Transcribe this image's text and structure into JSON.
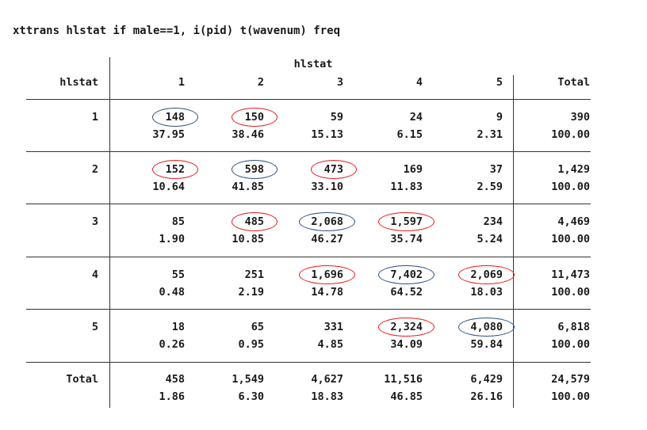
{
  "command": "xttrans hlstat if male==1, i(pid) t(wavenum) freq",
  "table": {
    "row_var": "hlstat",
    "col_var": "hlstat",
    "col_headers": [
      "1",
      "2",
      "3",
      "4",
      "5"
    ],
    "total_header": "Total",
    "rows": [
      {
        "label": "1",
        "freq": [
          "148",
          "150",
          "59",
          "24",
          "9"
        ],
        "total_freq": "390",
        "pct": [
          "37.95",
          "38.46",
          "15.13",
          "6.15",
          "2.31"
        ],
        "total_pct": "100.00"
      },
      {
        "label": "2",
        "freq": [
          "152",
          "598",
          "473",
          "169",
          "37"
        ],
        "total_freq": "1,429",
        "pct": [
          "10.64",
          "41.85",
          "33.10",
          "11.83",
          "2.59"
        ],
        "total_pct": "100.00"
      },
      {
        "label": "3",
        "freq": [
          "85",
          "485",
          "2,068",
          "1,597",
          "234"
        ],
        "total_freq": "4,469",
        "pct": [
          "1.90",
          "10.85",
          "46.27",
          "35.74",
          "5.24"
        ],
        "total_pct": "100.00"
      },
      {
        "label": "4",
        "freq": [
          "55",
          "251",
          "1,696",
          "7,402",
          "2,069"
        ],
        "total_freq": "11,473",
        "pct": [
          "0.48",
          "2.19",
          "14.78",
          "64.52",
          "18.03"
        ],
        "total_pct": "100.00"
      },
      {
        "label": "5",
        "freq": [
          "18",
          "65",
          "331",
          "2,324",
          "4,080"
        ],
        "total_freq": "6,818",
        "pct": [
          "0.26",
          "0.95",
          "4.85",
          "34.09",
          "59.84"
        ],
        "total_pct": "100.00"
      }
    ],
    "total_row": {
      "label": "Total",
      "freq": [
        "458",
        "1,549",
        "4,627",
        "11,516",
        "6,429"
      ],
      "total_freq": "24,579",
      "pct": [
        "1.86",
        "6.30",
        "18.83",
        "46.85",
        "26.16"
      ],
      "total_pct": "100.00"
    }
  },
  "annotations": {
    "colors": {
      "diagonal": "#2a4f86",
      "adjacent": "#e8191d"
    },
    "circled_cells": [
      {
        "row": 0,
        "col": 0,
        "color": "blue"
      },
      {
        "row": 0,
        "col": 1,
        "color": "red"
      },
      {
        "row": 1,
        "col": 0,
        "color": "red"
      },
      {
        "row": 1,
        "col": 1,
        "color": "blue"
      },
      {
        "row": 1,
        "col": 2,
        "color": "red"
      },
      {
        "row": 2,
        "col": 1,
        "color": "red"
      },
      {
        "row": 2,
        "col": 2,
        "color": "blue"
      },
      {
        "row": 2,
        "col": 3,
        "color": "red"
      },
      {
        "row": 3,
        "col": 2,
        "color": "red"
      },
      {
        "row": 3,
        "col": 3,
        "color": "blue"
      },
      {
        "row": 3,
        "col": 4,
        "color": "red"
      },
      {
        "row": 4,
        "col": 3,
        "color": "red"
      },
      {
        "row": 4,
        "col": 4,
        "color": "blue"
      }
    ]
  }
}
